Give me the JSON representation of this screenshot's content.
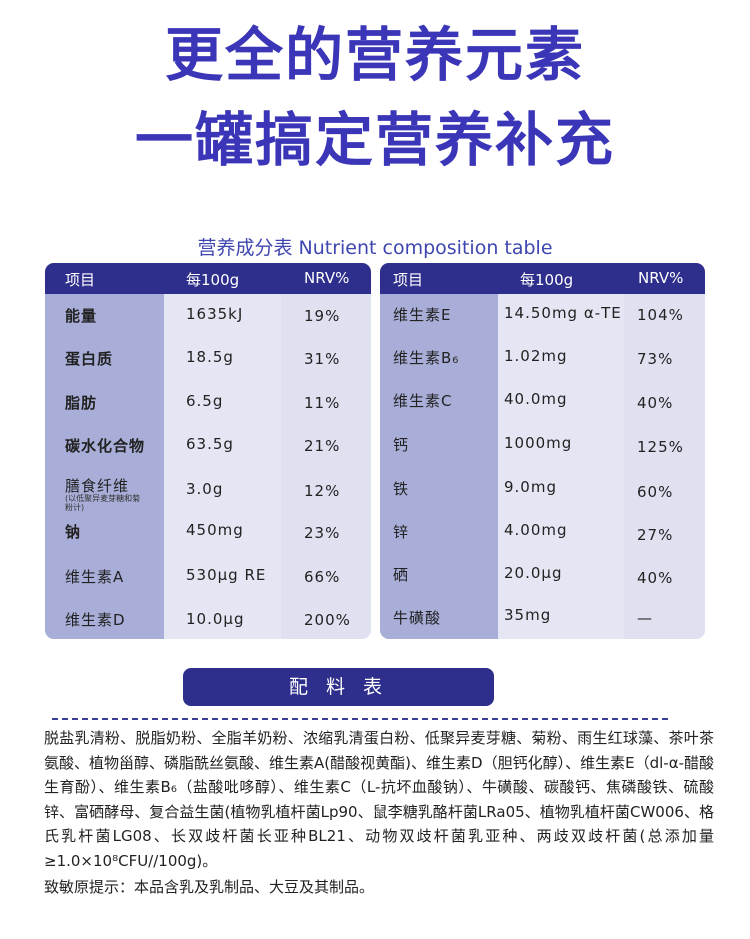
{
  "headline": {
    "line1": "更全的营养元素",
    "line2": "一罐搞定营养补充"
  },
  "nutrition": {
    "title": "营养成分表 Nutrient composition table",
    "header": {
      "item": "项目",
      "per100g": "每100g",
      "nrv": "NRV%"
    },
    "left_rows": [
      {
        "name": "能量",
        "value": "1635kJ",
        "nrv": "19%"
      },
      {
        "name": "蛋白质",
        "value": "18.5g",
        "nrv": "31%"
      },
      {
        "name": "脂肪",
        "value": "6.5g",
        "nrv": "11%"
      },
      {
        "name": "碳水化合物",
        "value": "63.5g",
        "nrv": "21%"
      },
      {
        "name": "膳食纤维",
        "note": "(以低聚异麦芽糖和菊粉计)",
        "value": "3.0g",
        "nrv": "12%"
      },
      {
        "name": "钠",
        "value": "450mg",
        "nrv": "23%"
      },
      {
        "name": "维生素A",
        "value": "530μg RE",
        "nrv": "66%"
      },
      {
        "name": "维生素D",
        "value": "10.0μg",
        "nrv": "200%"
      }
    ],
    "right_rows": [
      {
        "name": "维生素E",
        "value": "14.50mg α-TE",
        "nrv": "104%"
      },
      {
        "name": "维生素B₆",
        "value": "1.02mg",
        "nrv": "73%"
      },
      {
        "name": "维生素C",
        "value": "40.0mg",
        "nrv": "40%"
      },
      {
        "name": "钙",
        "value": "1000mg",
        "nrv": "125%"
      },
      {
        "name": "铁",
        "value": "9.0mg",
        "nrv": "60%"
      },
      {
        "name": "锌",
        "value": "4.00mg",
        "nrv": "27%"
      },
      {
        "name": "硒",
        "value": "20.0μg",
        "nrv": "40%"
      },
      {
        "name": "牛磺酸",
        "value": "35mg",
        "nrv": "—"
      }
    ]
  },
  "ingredients": {
    "title": "配 料 表",
    "text": "脱盐乳清粉、脱脂奶粉、全脂羊奶粉、浓缩乳清蛋白粉、低聚异麦芽糖、菊粉、雨生红球藻、茶叶茶氨酸、植物甾醇、磷脂酰丝氨酸、维生素A(醋酸视黄酯)、维生素D（胆钙化醇）、维生素E（dl-α-醋酸生育酚）、维生素B₆（盐酸吡哆醇）、维生素C（L-抗坏血酸钠）、牛磺酸、碳酸钙、焦磷酸铁、硫酸锌、富硒酵母、复合益生菌(植物乳植杆菌Lp90、鼠李糖乳酪杆菌LRa05、植物乳植杆菌CW006、格氏乳杆菌LG08、长双歧杆菌长亚种BL21、动物双歧杆菌乳亚种、两歧双歧杆菌(总添加量≥1.0×10⁸CFU//100g)。",
    "allergy": "致敏原提示：本品含乳及乳制品、大豆及其制品。"
  },
  "colors": {
    "headline": "#3b35b8",
    "header_bar": "#2e2e8c",
    "name_col": "#a8aed8",
    "table_bg": "#e4e6f3"
  }
}
